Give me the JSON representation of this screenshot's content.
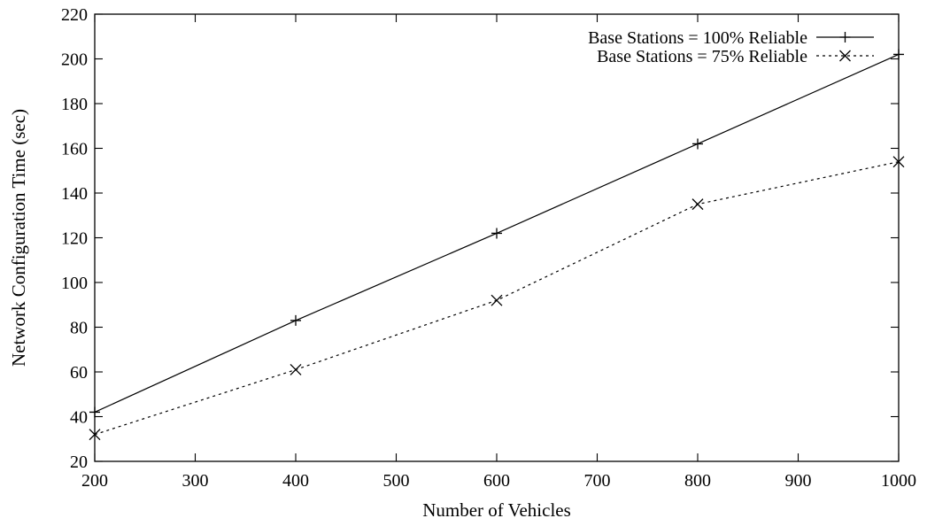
{
  "chart_data": {
    "type": "line",
    "title": "",
    "xlabel": "Number of Vehicles",
    "ylabel": "Network Configuration Time (sec)",
    "xlim": [
      200,
      1000
    ],
    "ylim": [
      20,
      220
    ],
    "xticks": [
      200,
      300,
      400,
      500,
      600,
      700,
      800,
      900,
      1000
    ],
    "yticks": [
      20,
      40,
      60,
      80,
      100,
      120,
      140,
      160,
      180,
      200,
      220
    ],
    "grid": false,
    "legend_position": "top-right",
    "series": [
      {
        "name": "Base Stations = 100% Reliable",
        "marker": "plus",
        "line": "solid",
        "x": [
          200,
          400,
          600,
          800,
          1000
        ],
        "y": [
          42,
          83,
          122,
          162,
          202
        ]
      },
      {
        "name": "Base Stations = 75% Reliable",
        "marker": "cross",
        "line": "dotted",
        "x": [
          200,
          400,
          600,
          800,
          1000
        ],
        "y": [
          32,
          61,
          92,
          135,
          154
        ]
      }
    ]
  }
}
